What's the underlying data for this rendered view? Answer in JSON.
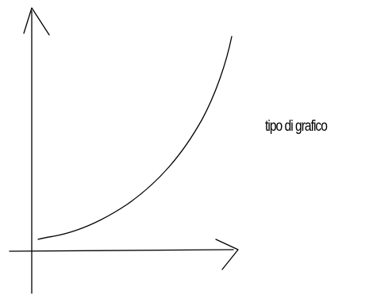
{
  "caption": "tipo di grafico",
  "colors": {
    "ink": "#000000",
    "paper": "#ffffff"
  },
  "figure": {
    "curve_shape": "exponential-growth",
    "axes": [
      "y-axis-arrow-up",
      "x-axis-arrow-right"
    ]
  }
}
